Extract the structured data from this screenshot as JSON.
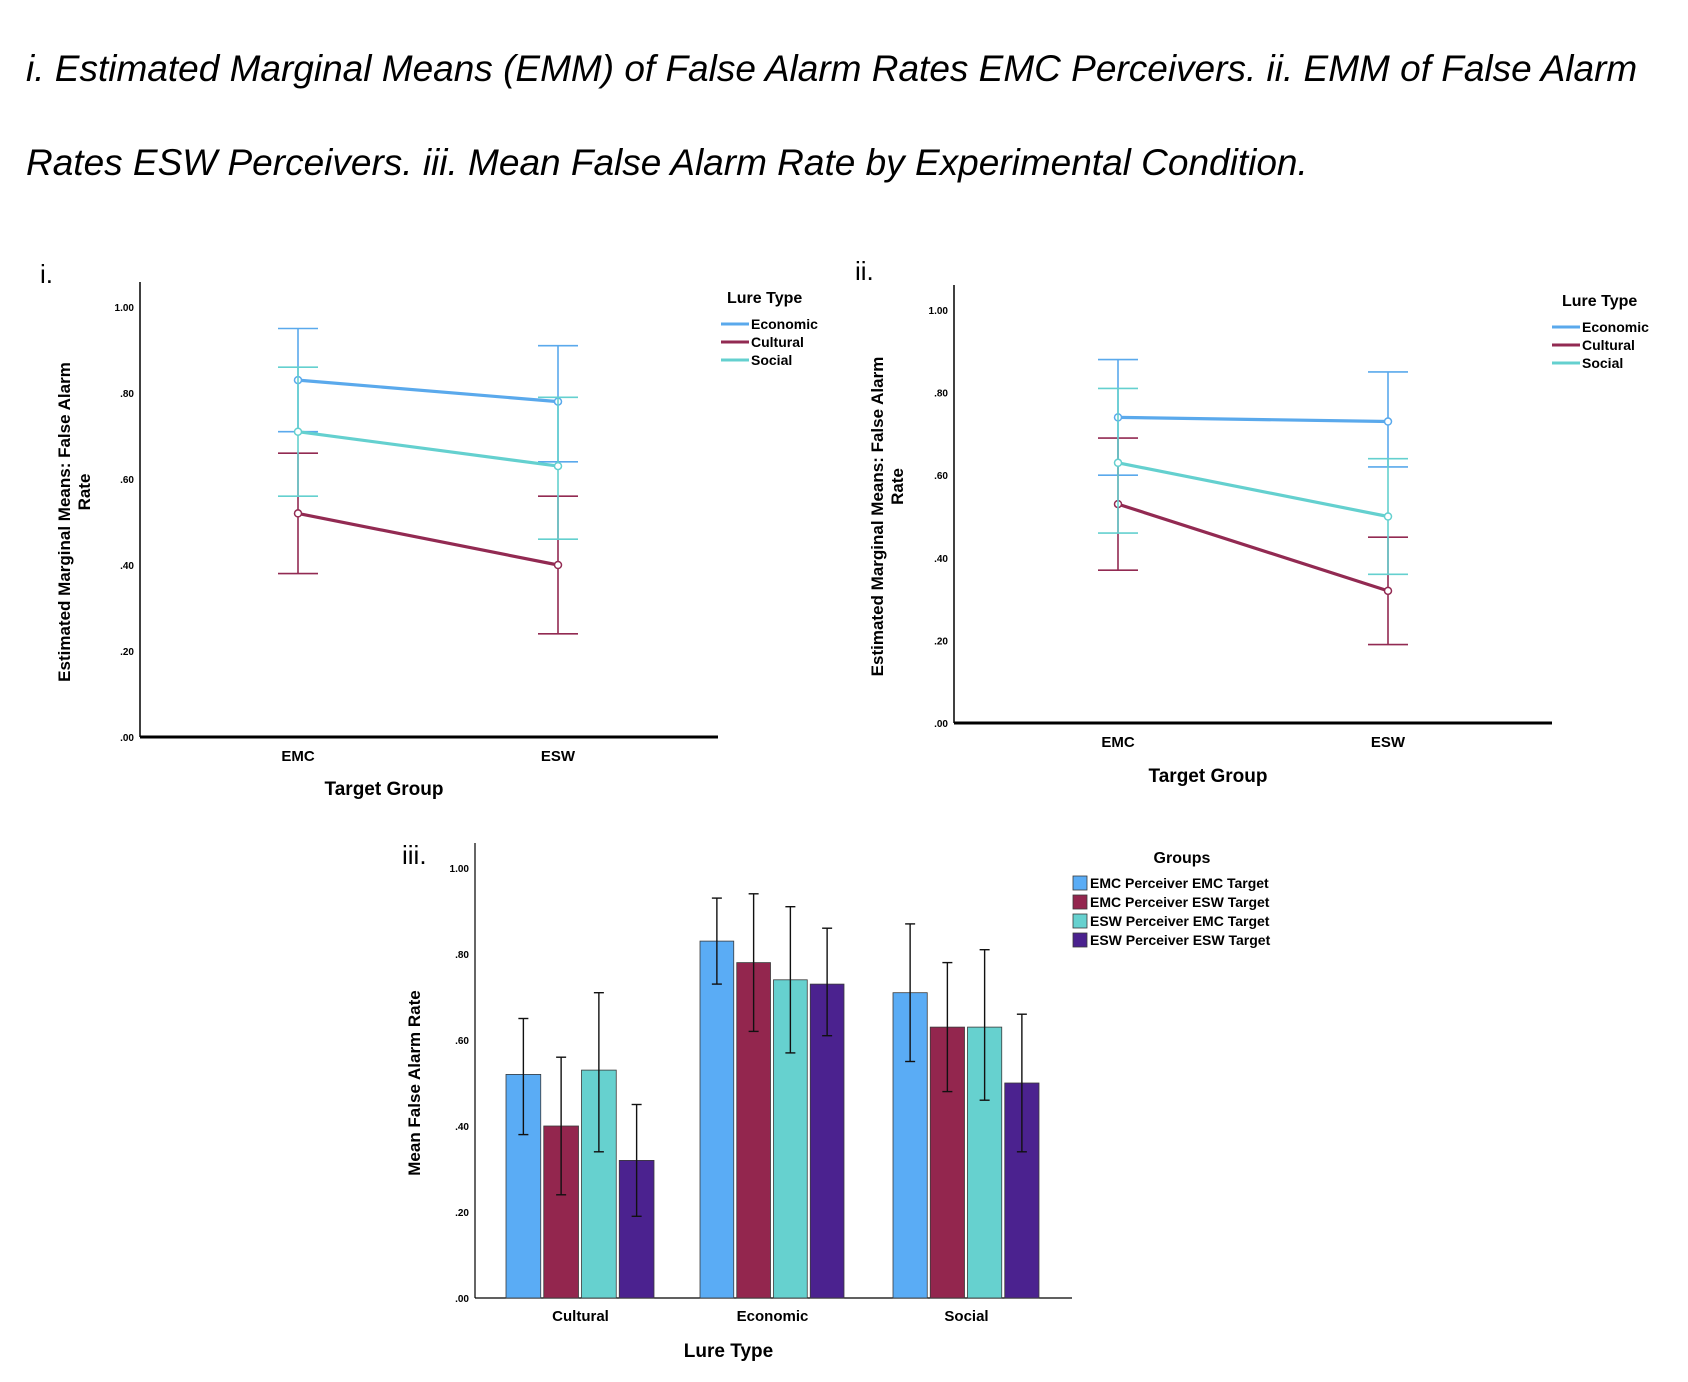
{
  "caption": "i. Estimated Marginal Means (EMM) of False Alarm Rates EMC Perceivers. ii. EMM of False Alarm Rates ESW Perceivers. iii. Mean False Alarm Rate by Experimental Condition.",
  "chart_data": [
    {
      "panel": "i.",
      "type": "line",
      "categories": [
        "EMC",
        "ESW"
      ],
      "xlabel": "Target Group",
      "ylabel": "Estimated Marginal Means: False Alarm Rate",
      "ylim": [
        0,
        1
      ],
      "yticks": [
        0,
        0.2,
        0.4,
        0.6,
        0.8,
        1.0
      ],
      "ytick_labels": [
        ".00",
        ".20",
        ".40",
        ".60",
        ".80",
        "1.00"
      ],
      "legend_title": "Lure Type",
      "legend_position": "top-right",
      "series": [
        {
          "name": "Economic",
          "color": "#5aa9ec",
          "values": [
            0.83,
            0.78
          ],
          "lower": [
            0.71,
            0.64
          ],
          "upper": [
            0.95,
            0.91
          ]
        },
        {
          "name": "Cultural",
          "color": "#922a52",
          "values": [
            0.52,
            0.4
          ],
          "lower": [
            0.38,
            0.24
          ],
          "upper": [
            0.66,
            0.56
          ]
        },
        {
          "name": "Social",
          "color": "#64d0cf",
          "values": [
            0.71,
            0.63
          ],
          "lower": [
            0.56,
            0.46
          ],
          "upper": [
            0.86,
            0.79
          ]
        }
      ]
    },
    {
      "panel": "ii.",
      "type": "line",
      "categories": [
        "EMC",
        "ESW"
      ],
      "xlabel": "Target Group",
      "ylabel": "Estimated Marginal Means: False Alarm Rate",
      "ylim": [
        0,
        1
      ],
      "yticks": [
        0,
        0.2,
        0.4,
        0.6,
        0.8,
        1.0
      ],
      "ytick_labels": [
        ".00",
        ".20",
        ".40",
        ".60",
        ".80",
        "1.00"
      ],
      "legend_title": "Lure Type",
      "legend_position": "top-right",
      "series": [
        {
          "name": "Economic",
          "color": "#5aa9ec",
          "values": [
            0.74,
            0.73
          ],
          "lower": [
            0.6,
            0.62
          ],
          "upper": [
            0.88,
            0.85
          ]
        },
        {
          "name": "Cultural",
          "color": "#922a52",
          "values": [
            0.53,
            0.32
          ],
          "lower": [
            0.37,
            0.19
          ],
          "upper": [
            0.69,
            0.45
          ]
        },
        {
          "name": "Social",
          "color": "#64d0cf",
          "values": [
            0.63,
            0.5
          ],
          "lower": [
            0.46,
            0.36
          ],
          "upper": [
            0.81,
            0.64
          ]
        }
      ]
    },
    {
      "panel": "iii.",
      "type": "bar",
      "categories": [
        "Cultural",
        "Economic",
        "Social"
      ],
      "xlabel": "Lure Type",
      "ylabel": "Mean False Alarm Rate",
      "ylim": [
        0,
        1
      ],
      "yticks": [
        0,
        0.2,
        0.4,
        0.6,
        0.8,
        1.0
      ],
      "ytick_labels": [
        ".00",
        ".20",
        ".40",
        ".60",
        ".80",
        "1.00"
      ],
      "legend_title": "Groups",
      "legend_position": "top-right",
      "series": [
        {
          "name": "EMC Perceiver EMC Target",
          "color": "#5aacf5",
          "values": [
            0.52,
            0.83,
            0.71
          ],
          "lower": [
            0.38,
            0.73,
            0.55
          ],
          "upper": [
            0.65,
            0.93,
            0.87
          ]
        },
        {
          "name": "EMC Perceiver ESW Target",
          "color": "#93264e",
          "values": [
            0.4,
            0.78,
            0.63
          ],
          "lower": [
            0.24,
            0.62,
            0.48
          ],
          "upper": [
            0.56,
            0.94,
            0.78
          ]
        },
        {
          "name": "ESW Perceiver EMC Target",
          "color": "#66d1cf",
          "values": [
            0.53,
            0.74,
            0.63
          ],
          "lower": [
            0.34,
            0.57,
            0.46
          ],
          "upper": [
            0.71,
            0.91,
            0.81
          ]
        },
        {
          "name": "ESW Perceiver ESW Target",
          "color": "#4b228f",
          "values": [
            0.32,
            0.73,
            0.5
          ],
          "lower": [
            0.19,
            0.61,
            0.34
          ],
          "upper": [
            0.45,
            0.86,
            0.66
          ]
        }
      ]
    }
  ]
}
